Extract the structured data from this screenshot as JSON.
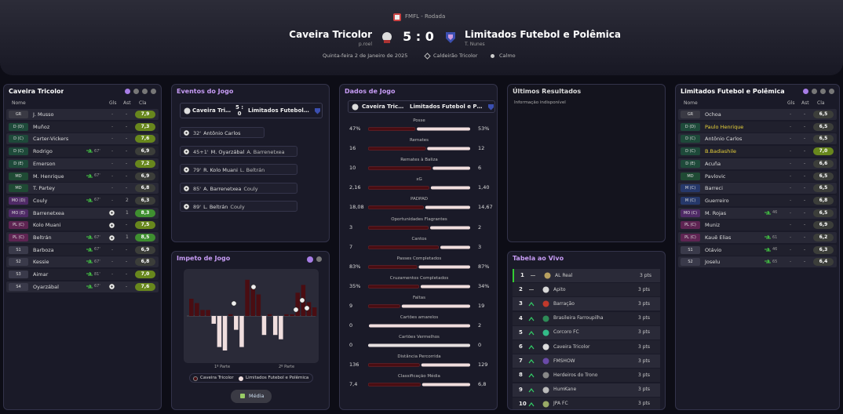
{
  "header": {
    "competition": "FMFL - Rodada",
    "home_team": "Caveira Tricolor",
    "home_manager": "p.roel",
    "score": "5 : 0",
    "away_team": "Limitados Futebol e Polêmica",
    "away_manager": "T. Nunes",
    "date": "Quinta-feira 2 de Janeiro de 2025",
    "stadium": "Caldeirão Tricolor",
    "weather": "Calmo"
  },
  "home_lineup": {
    "title": "Caveira Tricolor",
    "columns": [
      "Nome",
      "Gls",
      "Ast",
      "Cla"
    ],
    "rows": [
      {
        "pos": "GR",
        "name": "J. Musso",
        "gls": "-",
        "ast": "-",
        "rating": "7,9"
      },
      {
        "pos": "D (D)",
        "name": "Muñoz",
        "gls": "-",
        "ast": "-",
        "rating": "7,3"
      },
      {
        "pos": "D (C)",
        "name": "Carter-Vickers",
        "gls": "-",
        "ast": "-",
        "rating": "7,6"
      },
      {
        "pos": "D (C)",
        "name": "Rodrigo",
        "sub": "67'",
        "gls": "-",
        "ast": "-",
        "rating": "6,9"
      },
      {
        "pos": "D (E)",
        "name": "Emerson",
        "gls": "-",
        "ast": "-",
        "rating": "7,2"
      },
      {
        "pos": "MD",
        "name": "M. Henrique",
        "sub": "67'",
        "gls": "-",
        "ast": "-",
        "rating": "6,9"
      },
      {
        "pos": "MD",
        "name": "T. Partey",
        "gls": "-",
        "ast": "-",
        "rating": "6,8"
      },
      {
        "pos": "MO (D)",
        "name": "Couly",
        "sub": "67'",
        "gls": "-",
        "ast": "2",
        "rating": "6,3"
      },
      {
        "pos": "MO (E)",
        "name": "Barrenetxea",
        "goal": true,
        "ast": "1",
        "rating": "8,3"
      },
      {
        "pos": "PL (C)",
        "name": "Kolo Muani",
        "goal": true,
        "ast": "-",
        "rating": "7,5"
      },
      {
        "pos": "PL (C)",
        "name": "Beltrán",
        "sub": "67'",
        "goal": true,
        "ast": "1",
        "rating": "8,5"
      },
      {
        "pos": "S1",
        "name": "Barboza",
        "sub": "67'",
        "gls": "-",
        "ast": "-",
        "rating": "6,9"
      },
      {
        "pos": "S2",
        "name": "Kessie",
        "sub": "67'",
        "gls": "-",
        "ast": "-",
        "rating": "6,8"
      },
      {
        "pos": "S3",
        "name": "Aimar",
        "sub": "81'",
        "gls": "-",
        "ast": "-",
        "rating": "7,0"
      },
      {
        "pos": "S4",
        "name": "Oyarzábal",
        "sub": "67'",
        "goal": true,
        "ast": "-",
        "rating": "7,6"
      }
    ]
  },
  "events": {
    "title": "Eventos do Jogo",
    "home_tab": "Caveira Tricolor",
    "score": "5 : 0",
    "away_tab": "Limitados Futebol e Polêmica",
    "items": [
      {
        "minute": "32'",
        "player": "Antônio Carlos"
      },
      {
        "minute": "45+1'",
        "player": "M. Oyarzábal",
        "assist": "A. Barrenetxea"
      },
      {
        "minute": "79'",
        "player": "R. Kolo Muani",
        "assist": "L. Beltrán"
      },
      {
        "minute": "85'",
        "player": "A. Barrenetxea",
        "assist": "Couly"
      },
      {
        "minute": "89'",
        "player": "L. Beltrán",
        "assist": "Couly"
      }
    ]
  },
  "momentum": {
    "title": "Impeto de Jogo",
    "halves": [
      "1º Parte",
      "2º Parte"
    ],
    "legend": [
      "Caveira Tricolor",
      "Limitados Futebol e Polêmica"
    ],
    "button": "Média",
    "values": [
      20,
      15,
      7,
      7,
      -9,
      -36,
      -40,
      2,
      -16,
      -36,
      42,
      35,
      25,
      -22,
      2,
      -22,
      -27,
      2,
      2,
      27,
      36,
      16,
      10
    ]
  },
  "stats": {
    "title": "Dados de Jogo",
    "home_tab": "Caveira Tricolor",
    "away_tab": "Limitados Futebol e Polêmica",
    "rows": [
      {
        "label": "Posse",
        "home": "47%",
        "away": "53%"
      },
      {
        "label": "Remates",
        "home": "16",
        "away": "12"
      },
      {
        "label": "Remates à Baliza",
        "home": "10",
        "away": "6"
      },
      {
        "label": "xG",
        "home": "2,16",
        "away": "1,40"
      },
      {
        "label": "PADPAD",
        "home": "18,08",
        "away": "14,67"
      },
      {
        "label": "Oportunidades Flagrantes",
        "home": "3",
        "away": "2"
      },
      {
        "label": "Cantos",
        "home": "7",
        "away": "3"
      },
      {
        "label": "Passes Completados",
        "home": "83%",
        "away": "87%"
      },
      {
        "label": "Cruzamentos Completados",
        "home": "35%",
        "away": "34%"
      },
      {
        "label": "Faltas",
        "home": "9",
        "away": "19"
      },
      {
        "label": "Cartões amarelos",
        "home": "0",
        "away": "2"
      },
      {
        "label": "Cartões Vermelhos",
        "home": "0",
        "away": "0"
      },
      {
        "label": "Distância Percorrida",
        "home": "136",
        "away": "129"
      },
      {
        "label": "Classificação Média",
        "home": "7,4",
        "away": "6,8"
      }
    ]
  },
  "recent": {
    "title": "Últimos Resultados",
    "message": "Informação indisponível"
  },
  "live_table": {
    "title": "Tabela ao Vivo",
    "rows": [
      {
        "pos": "1",
        "trend": "same",
        "team": "AL Real",
        "pts": "3 pts"
      },
      {
        "pos": "2",
        "trend": "same",
        "team": "Apito",
        "pts": "3 pts"
      },
      {
        "pos": "3",
        "trend": "up",
        "team": "Barração",
        "pts": "3 pts"
      },
      {
        "pos": "4",
        "trend": "up",
        "team": "Brasileira Farroupilha",
        "pts": "3 pts"
      },
      {
        "pos": "5",
        "trend": "up",
        "team": "Corcoro FC",
        "pts": "3 pts"
      },
      {
        "pos": "6",
        "trend": "up",
        "team": "Caveira Tricolor",
        "pts": "3 pts"
      },
      {
        "pos": "7",
        "trend": "up",
        "team": "FMSHOW",
        "pts": "3 pts"
      },
      {
        "pos": "8",
        "trend": "up",
        "team": "Herdeiros do Trono",
        "pts": "3 pts"
      },
      {
        "pos": "9",
        "trend": "up",
        "team": "HumKane",
        "pts": "3 pts"
      },
      {
        "pos": "10",
        "trend": "up",
        "team": "JPA FC",
        "pts": "3 pts"
      }
    ]
  },
  "away_lineup": {
    "title": "Limitados Futebol e Polêmica",
    "columns": [
      "Nome",
      "Gls",
      "Ast",
      "Cla"
    ],
    "rows": [
      {
        "pos": "GR",
        "name": "Ochoa",
        "gls": "-",
        "ast": "-",
        "rating": "6,5"
      },
      {
        "pos": "D (D)",
        "name": "Paulo Henrique",
        "yellow_card": true,
        "gls": "-",
        "ast": "-",
        "rating": "6,5"
      },
      {
        "pos": "D (C)",
        "name": "Antônio Carlos",
        "gls": "-",
        "ast": "-",
        "rating": "6,5"
      },
      {
        "pos": "D (C)",
        "name": "B.Badiashile",
        "yellow_card": true,
        "gls": "-",
        "ast": "-",
        "rating": "7,0"
      },
      {
        "pos": "D (E)",
        "name": "Acuña",
        "gls": "-",
        "ast": "-",
        "rating": "6,6"
      },
      {
        "pos": "MD",
        "name": "Pavlovic",
        "gls": "-",
        "ast": "-",
        "rating": "6,5"
      },
      {
        "pos": "M (C)",
        "name": "Barreci",
        "gls": "-",
        "ast": "-",
        "rating": "6,5"
      },
      {
        "pos": "M (C)",
        "name": "Guerreiro",
        "gls": "-",
        "ast": "-",
        "rating": "6,8"
      },
      {
        "pos": "MO (C)",
        "name": "M. Rojas",
        "sub": "46",
        "gls": "-",
        "ast": "-",
        "rating": "6,5"
      },
      {
        "pos": "PL (C)",
        "name": "Muniz",
        "gls": "-",
        "ast": "-",
        "rating": "6,9"
      },
      {
        "pos": "PL (C)",
        "name": "Kauê Elias",
        "sub": "61",
        "gls": "-",
        "ast": "-",
        "rating": "6,2"
      },
      {
        "pos": "S1",
        "name": "Otávio",
        "sub": "46",
        "gls": "-",
        "ast": "-",
        "rating": "6,3"
      },
      {
        "pos": "S2",
        "name": "Joselu",
        "sub": "65",
        "gls": "-",
        "ast": "-",
        "rating": "6,4"
      }
    ]
  }
}
